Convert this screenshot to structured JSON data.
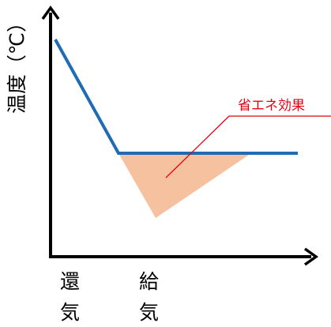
{
  "diagram": {
    "y_axis_label": "温度（℃）",
    "x_labels": {
      "return_air": [
        "還",
        "気"
      ],
      "supply_air": [
        "給",
        "気"
      ]
    },
    "annotation": "省エネ効果",
    "colors": {
      "axis": "#000000",
      "temperature_line": "#1f6cb4",
      "saving_area_fill": "#f5c19f",
      "annotation_text": "#e60012",
      "leader_line": "#e60012"
    }
  }
}
